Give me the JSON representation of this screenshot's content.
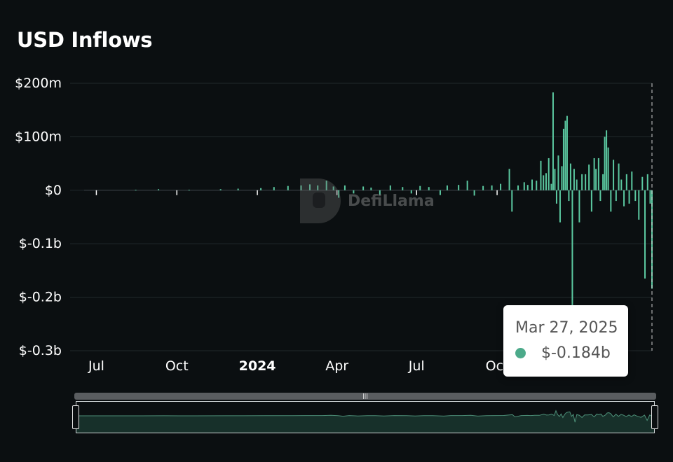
{
  "title": "USD Inflows",
  "watermark": "DefiLlama",
  "tooltip": {
    "date": "Mar 27, 2025",
    "value": "$-0.184b",
    "dot_color": "#4caa8a"
  },
  "colors": {
    "series": "#5bc8a0",
    "grid": "#22292c",
    "background": "#0b0f11"
  },
  "chart_data": {
    "type": "bar",
    "title": "USD Inflows",
    "xlabel": "",
    "ylabel": "",
    "ylim": [
      -300,
      200
    ],
    "unit": "USD millions",
    "yticks": [
      {
        "value": 200,
        "label": "$200m"
      },
      {
        "value": 100,
        "label": "$100m"
      },
      {
        "value": 0,
        "label": "$0"
      },
      {
        "value": -100,
        "label": "$-0.1b"
      },
      {
        "value": -200,
        "label": "$-0.2b"
      },
      {
        "value": -300,
        "label": "$-0.3b"
      }
    ],
    "xticks": [
      {
        "date": "2023-07-01",
        "label": "Jul",
        "bold": false
      },
      {
        "date": "2023-10-01",
        "label": "Oct",
        "bold": false
      },
      {
        "date": "2024-01-01",
        "label": "2024",
        "bold": true
      },
      {
        "date": "2024-04-01",
        "label": "Apr",
        "bold": false
      },
      {
        "date": "2024-07-01",
        "label": "Jul",
        "bold": false
      },
      {
        "date": "2024-10-01",
        "label": "Oct",
        "bold": false
      }
    ],
    "xrange": [
      "2023-06-01",
      "2025-03-27"
    ],
    "legend": "none",
    "grid": true,
    "series": [
      {
        "values": [
          [
            "2023-08-15",
            1
          ],
          [
            "2023-09-10",
            2
          ],
          [
            "2023-10-15",
            1
          ],
          [
            "2023-11-20",
            2
          ],
          [
            "2023-12-10",
            3
          ],
          [
            "2024-01-05",
            4
          ],
          [
            "2024-01-20",
            6
          ],
          [
            "2024-02-05",
            8
          ],
          [
            "2024-02-20",
            9
          ],
          [
            "2024-03-01",
            11
          ],
          [
            "2024-03-10",
            9
          ],
          [
            "2024-03-20",
            18
          ],
          [
            "2024-03-28",
            7
          ],
          [
            "2024-04-03",
            -14
          ],
          [
            "2024-04-10",
            9
          ],
          [
            "2024-04-20",
            -6
          ],
          [
            "2024-05-01",
            7
          ],
          [
            "2024-05-10",
            5
          ],
          [
            "2024-05-20",
            -8
          ],
          [
            "2024-06-01",
            9
          ],
          [
            "2024-06-15",
            6
          ],
          [
            "2024-06-25",
            -6
          ],
          [
            "2024-07-05",
            8
          ],
          [
            "2024-07-15",
            6
          ],
          [
            "2024-07-28",
            -9
          ],
          [
            "2024-08-05",
            9
          ],
          [
            "2024-08-18",
            10
          ],
          [
            "2024-08-28",
            18
          ],
          [
            "2024-09-05",
            -10
          ],
          [
            "2024-09-15",
            8
          ],
          [
            "2024-09-25",
            9
          ],
          [
            "2024-10-05",
            12
          ],
          [
            "2024-10-15",
            40
          ],
          [
            "2024-10-18",
            -40
          ],
          [
            "2024-10-25",
            9
          ],
          [
            "2024-11-01",
            15
          ],
          [
            "2024-11-05",
            10
          ],
          [
            "2024-11-10",
            20
          ],
          [
            "2024-11-15",
            18
          ],
          [
            "2024-11-20",
            55
          ],
          [
            "2024-11-23",
            28
          ],
          [
            "2024-11-26",
            32
          ],
          [
            "2024-11-29",
            60
          ],
          [
            "2024-12-02",
            12
          ],
          [
            "2024-12-04",
            183
          ],
          [
            "2024-12-06",
            40
          ],
          [
            "2024-12-08",
            -25
          ],
          [
            "2024-12-10",
            65
          ],
          [
            "2024-12-12",
            -60
          ],
          [
            "2024-12-14",
            45
          ],
          [
            "2024-12-16",
            115
          ],
          [
            "2024-12-18",
            130
          ],
          [
            "2024-12-20",
            139
          ],
          [
            "2024-12-22",
            -20
          ],
          [
            "2024-12-24",
            50
          ],
          [
            "2024-12-26",
            -230
          ],
          [
            "2024-12-28",
            40
          ],
          [
            "2024-12-31",
            20
          ],
          [
            "2025-01-03",
            -60
          ],
          [
            "2025-01-06",
            30
          ],
          [
            "2025-01-10",
            30
          ],
          [
            "2025-01-14",
            48
          ],
          [
            "2025-01-17",
            -40
          ],
          [
            "2025-01-20",
            60
          ],
          [
            "2025-01-22",
            40
          ],
          [
            "2025-01-25",
            60
          ],
          [
            "2025-01-27",
            -20
          ],
          [
            "2025-01-30",
            30
          ],
          [
            "2025-02-01",
            100
          ],
          [
            "2025-02-03",
            112
          ],
          [
            "2025-02-05",
            80
          ],
          [
            "2025-02-08",
            -40
          ],
          [
            "2025-02-11",
            57
          ],
          [
            "2025-02-14",
            -20
          ],
          [
            "2025-02-17",
            50
          ],
          [
            "2025-02-20",
            20
          ],
          [
            "2025-02-23",
            -30
          ],
          [
            "2025-02-26",
            30
          ],
          [
            "2025-03-01",
            -25
          ],
          [
            "2025-03-04",
            35
          ],
          [
            "2025-03-08",
            -20
          ],
          [
            "2025-03-12",
            -55
          ],
          [
            "2025-03-16",
            25
          ],
          [
            "2025-03-19",
            -165
          ],
          [
            "2025-03-22",
            30
          ],
          [
            "2025-03-25",
            -25
          ],
          [
            "2025-03-27",
            -184
          ]
        ]
      }
    ]
  }
}
